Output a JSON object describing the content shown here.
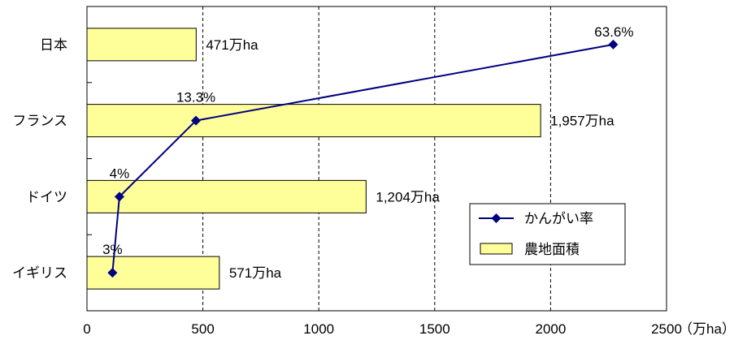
{
  "chart_data": {
    "type": "bar",
    "orientation": "horizontal",
    "categories": [
      "日本",
      "フランス",
      "ドイツ",
      "イギリス"
    ],
    "series": [
      {
        "name": "農地面積",
        "type": "bar",
        "color": "#ffff99",
        "values": [
          471,
          1957,
          1204,
          571
        ],
        "labels": [
          "471万ha",
          "1,957万ha",
          "1,204万ha",
          "571万ha"
        ]
      },
      {
        "name": "かんがい率",
        "type": "line",
        "color": "#000080",
        "marker": "diamond",
        "values": [
          63.6,
          13.3,
          4,
          3
        ],
        "x_positions": [
          2270,
          470,
          140,
          110
        ],
        "labels": [
          "63.6%",
          "13.3%",
          "4%",
          "3%"
        ]
      }
    ],
    "xaxis": {
      "ticks": [
        "0",
        "500",
        "1000",
        "1500",
        "2000",
        "2500"
      ],
      "unit_label": "（万ha）",
      "range": [
        0,
        2500
      ]
    },
    "grid": "vertical dashed",
    "legend_position": "lower-right"
  }
}
